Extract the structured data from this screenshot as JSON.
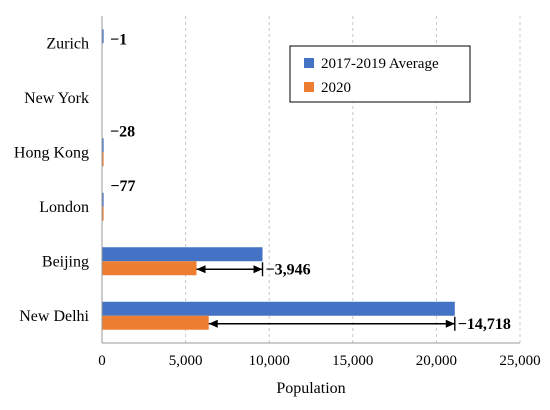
{
  "chart_data": {
    "type": "bar",
    "orientation": "horizontal",
    "categories": [
      "Zurich",
      "New York",
      "Hong Kong",
      "London",
      "Beijing",
      "New Delhi"
    ],
    "series": [
      {
        "name": "2017-2019 Average",
        "color": "#4472C4",
        "values": [
          1,
          0,
          30,
          80,
          9600,
          21100
        ]
      },
      {
        "name": "2020",
        "color": "#ED7D31",
        "values": [
          0,
          0,
          2,
          3,
          5654,
          6382
        ]
      }
    ],
    "differences": [
      {
        "category": "Zurich",
        "label": "−1",
        "arrow": false
      },
      {
        "category": "New York",
        "label": "",
        "arrow": false
      },
      {
        "category": "Hong Kong",
        "label": "−28",
        "arrow": false
      },
      {
        "category": "London",
        "label": "−77",
        "arrow": false
      },
      {
        "category": "Beijing",
        "label": "−3,946",
        "arrow": true
      },
      {
        "category": "New Delhi",
        "label": "−14,718",
        "arrow": true
      }
    ],
    "xlabel": "Population",
    "ylabel": "",
    "xlim": [
      0,
      25000
    ],
    "xticks": [
      0,
      5000,
      10000,
      15000,
      20000,
      25000
    ],
    "xtick_labels": [
      "0",
      "5,000",
      "10,000",
      "15,000",
      "20,000",
      "25,000"
    ],
    "grid": "vertical-dashed",
    "legend_position": "top-right"
  }
}
